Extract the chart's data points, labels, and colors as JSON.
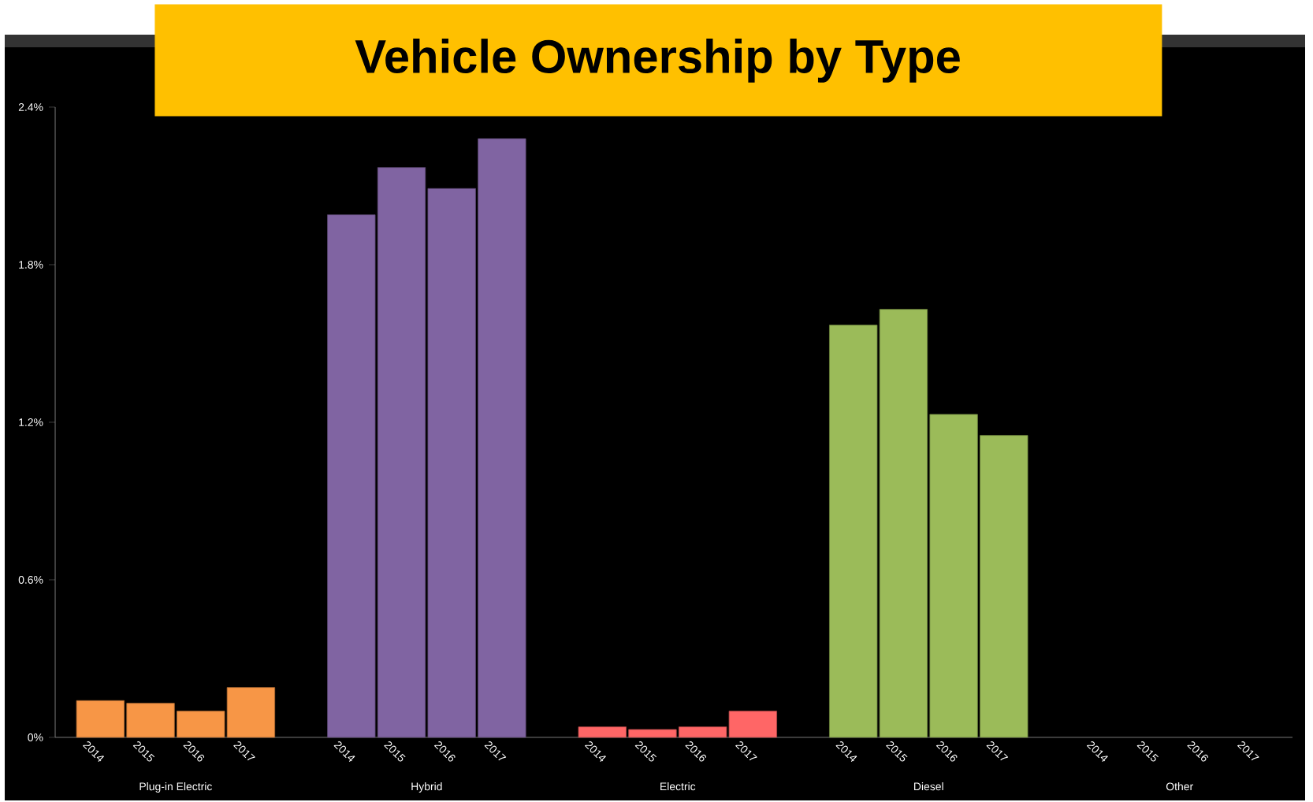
{
  "chart_data": {
    "type": "bar",
    "title": "Vehicle Ownership by Type",
    "categories": [
      "Plug-in Electric",
      "Hybrid",
      "Electric",
      "Diesel",
      "Other"
    ],
    "series": [
      {
        "name": "2014",
        "colors": [
          "#f79646",
          "#8064a2",
          "#ff6666",
          "#9bbb59",
          "#9bbb59"
        ],
        "values": [
          0.14,
          1.99,
          0.04,
          1.57,
          0
        ]
      },
      {
        "name": "2015",
        "colors": [
          "#f79646",
          "#8064a2",
          "#ff6666",
          "#9bbb59",
          "#9bbb59"
        ],
        "values": [
          0.13,
          2.17,
          0.03,
          1.63,
          0
        ]
      },
      {
        "name": "2016",
        "colors": [
          "#f79646",
          "#8064a2",
          "#ff6666",
          "#9bbb59",
          "#9bbb59"
        ],
        "values": [
          0.1,
          2.09,
          0.04,
          1.23,
          0
        ]
      },
      {
        "name": "2017",
        "colors": [
          "#f79646",
          "#8064a2",
          "#ff6666",
          "#9bbb59",
          "#9bbb59"
        ],
        "values": [
          0.19,
          2.28,
          0.1,
          1.15,
          0
        ]
      }
    ],
    "ylim": [
      0,
      2.4
    ],
    "yticks": [
      {
        "value": 0,
        "label": "0%"
      },
      {
        "value": 0.6,
        "label": "0.6%"
      },
      {
        "value": 1.2,
        "label": "1.2%"
      },
      {
        "value": 1.8,
        "label": "1.8%"
      },
      {
        "value": 2.4,
        "label": "2.4%"
      }
    ],
    "grid": false
  }
}
